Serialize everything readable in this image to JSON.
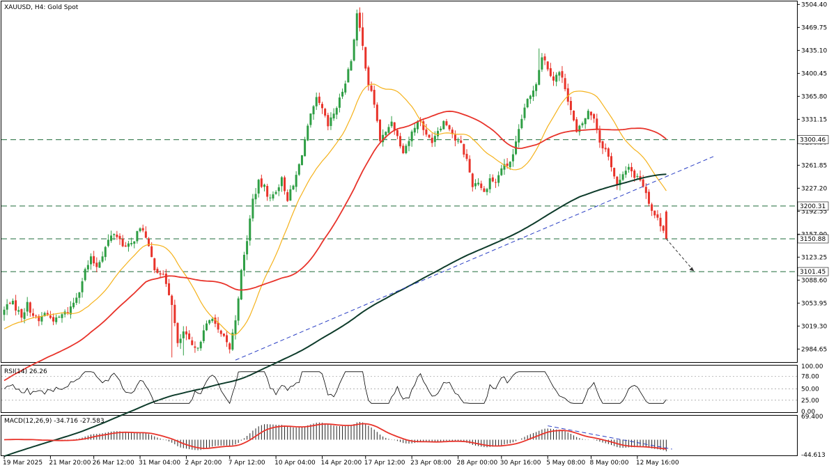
{
  "chart_data": [
    {
      "type": "candlestick",
      "title": "XAUUSD, H4:  Gold Spot",
      "ylim": [
        2965,
        3509
      ],
      "price_ticks": [
        "3504.40",
        "3469.75",
        "3435.10",
        "3400.45",
        "3365.80",
        "3331.15",
        "3296.50",
        "3261.85",
        "3227.20",
        "3192.55",
        "3157.90",
        "3123.25",
        "3088.60",
        "3053.95",
        "3019.30",
        "2984.65"
      ],
      "x_ticks": [
        "19 Mar 2025",
        "21 Mar 20:00",
        "26 Mar 12:00",
        "31 Mar 04:00",
        "2 Apr 20:00",
        "7 Apr 12:00",
        "10 Apr 04:00",
        "14 Apr 20:00",
        "17 Apr 12:00",
        "23 Apr 08:00",
        "28 Apr 00:00",
        "30 Apr 16:00",
        "5 May 08:00",
        "8 May 00:00",
        "12 May 16:00"
      ],
      "levels": [
        {
          "label": "3300.46",
          "value": 3300.46
        },
        {
          "label": "3200.31",
          "value": 3200.31
        },
        {
          "label": "3150.88",
          "value": 3150.88
        },
        {
          "label": "3101.45",
          "value": 3101.45
        }
      ],
      "anchors_close": [
        3043,
        3058,
        3047,
        3035,
        3052,
        3036,
        3026,
        3040,
        3032,
        3028,
        3036,
        3041,
        3055,
        3075,
        3103,
        3120,
        3110,
        3128,
        3148,
        3160,
        3150,
        3138,
        3142,
        3160,
        3167,
        3135,
        3108,
        3100,
        3085,
        3055,
        2990,
        3010,
        2995,
        2982,
        3000,
        3020,
        3035,
        3010,
        3000,
        2985,
        3030,
        3100,
        3150,
        3210,
        3235,
        3228,
        3210,
        3225,
        3240,
        3212,
        3230,
        3262,
        3300,
        3335,
        3360,
        3345,
        3320,
        3340,
        3360,
        3390,
        3420,
        3490,
        3440,
        3385,
        3355,
        3300,
        3310,
        3330,
        3305,
        3285,
        3300,
        3322,
        3330,
        3305,
        3300,
        3316,
        3328,
        3320,
        3300,
        3292,
        3270,
        3232,
        3238,
        3220,
        3242,
        3235,
        3258,
        3262,
        3275,
        3312,
        3350,
        3365,
        3388,
        3428,
        3410,
        3392,
        3402,
        3380,
        3345,
        3310,
        3325,
        3342,
        3335,
        3298,
        3285,
        3262,
        3230,
        3245,
        3262,
        3245,
        3242,
        3222,
        3194,
        3180,
        3167,
        3150
      ],
      "candle_count": 230,
      "ma_fast": {
        "period": 21,
        "color": "#f5b21b"
      },
      "ma_mid": {
        "period": 50,
        "color": "#e8332a"
      },
      "ma_slow": {
        "period": 200,
        "color": "#0d3b2a"
      },
      "trendline": {
        "from": [
          "7 Apr 12:00",
          2968
        ],
        "to": [
          "12 May 16:00",
          3228
        ],
        "extend_to_price": 3275
      },
      "projection": {
        "from_price": 3150.88,
        "to_price": 3102
      },
      "colors": {
        "up": "#2e9e44",
        "down": "#e8332a"
      }
    },
    {
      "type": "line",
      "label": "RSI(14) 26.26",
      "ylim": [
        0,
        100
      ],
      "ticks": [
        "100.00",
        "78.00",
        "50.00",
        "25.00",
        "0.00"
      ],
      "levels": [
        78,
        50,
        25
      ],
      "last": 26.26,
      "color": "#000000"
    },
    {
      "type": "histogram",
      "label": "MACD(12,26,9) -34.716 -27.583",
      "ylim": [
        -44.6,
        69.4
      ],
      "ticks": [
        "69.400",
        "-44.613"
      ],
      "macd_last": -34.716,
      "signal_last": -27.583,
      "signal_color": "#e8332a"
    }
  ]
}
